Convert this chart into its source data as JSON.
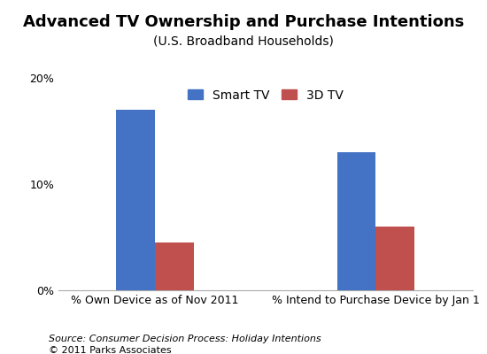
{
  "title": "Advanced TV Ownership and Purchase Intentions",
  "subtitle": "(U.S. Broadband Households)",
  "categories": [
    "% Own Device as of Nov 2011",
    "% Intend to Purchase Device by Jan 1"
  ],
  "series": [
    {
      "label": "Smart TV",
      "values": [
        0.17,
        0.13
      ],
      "color": "#4472C4"
    },
    {
      "label": "3D TV",
      "values": [
        0.045,
        0.06
      ],
      "color": "#C0504D"
    }
  ],
  "ylim": [
    0,
    0.2
  ],
  "yticks": [
    0.0,
    0.1,
    0.2
  ],
  "ytick_labels": [
    "0%",
    "10%",
    "20%"
  ],
  "bar_width": 0.35,
  "group_positions": [
    0.25,
    0.75
  ],
  "source_line1": "Source: Consumer Decision Process: Holiday Intentions",
  "source_line2": "© 2011 Parks Associates",
  "background_color": "#FFFFFF",
  "title_fontsize": 13,
  "subtitle_fontsize": 10,
  "axis_fontsize": 9,
  "source_fontsize": 8,
  "legend_fontsize": 10
}
